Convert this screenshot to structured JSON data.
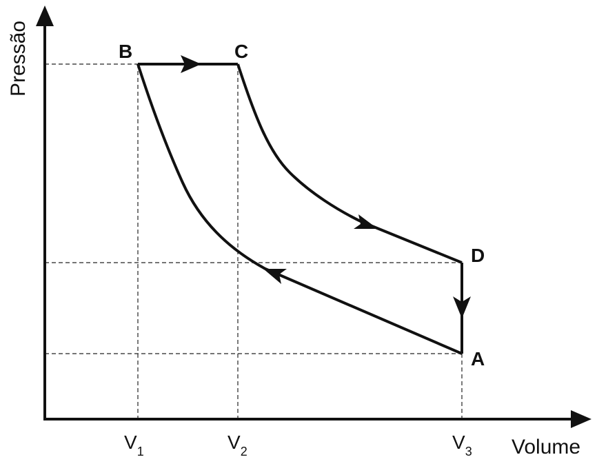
{
  "axes": {
    "y_label": "Pressão",
    "x_label": "Volume"
  },
  "points": [
    {
      "label": "A"
    },
    {
      "label": "B"
    },
    {
      "label": "C"
    },
    {
      "label": "D"
    }
  ],
  "volumes": [
    {
      "base": "V",
      "sub": "1"
    },
    {
      "base": "V",
      "sub": "2"
    },
    {
      "base": "V",
      "sub": "3"
    }
  ]
}
